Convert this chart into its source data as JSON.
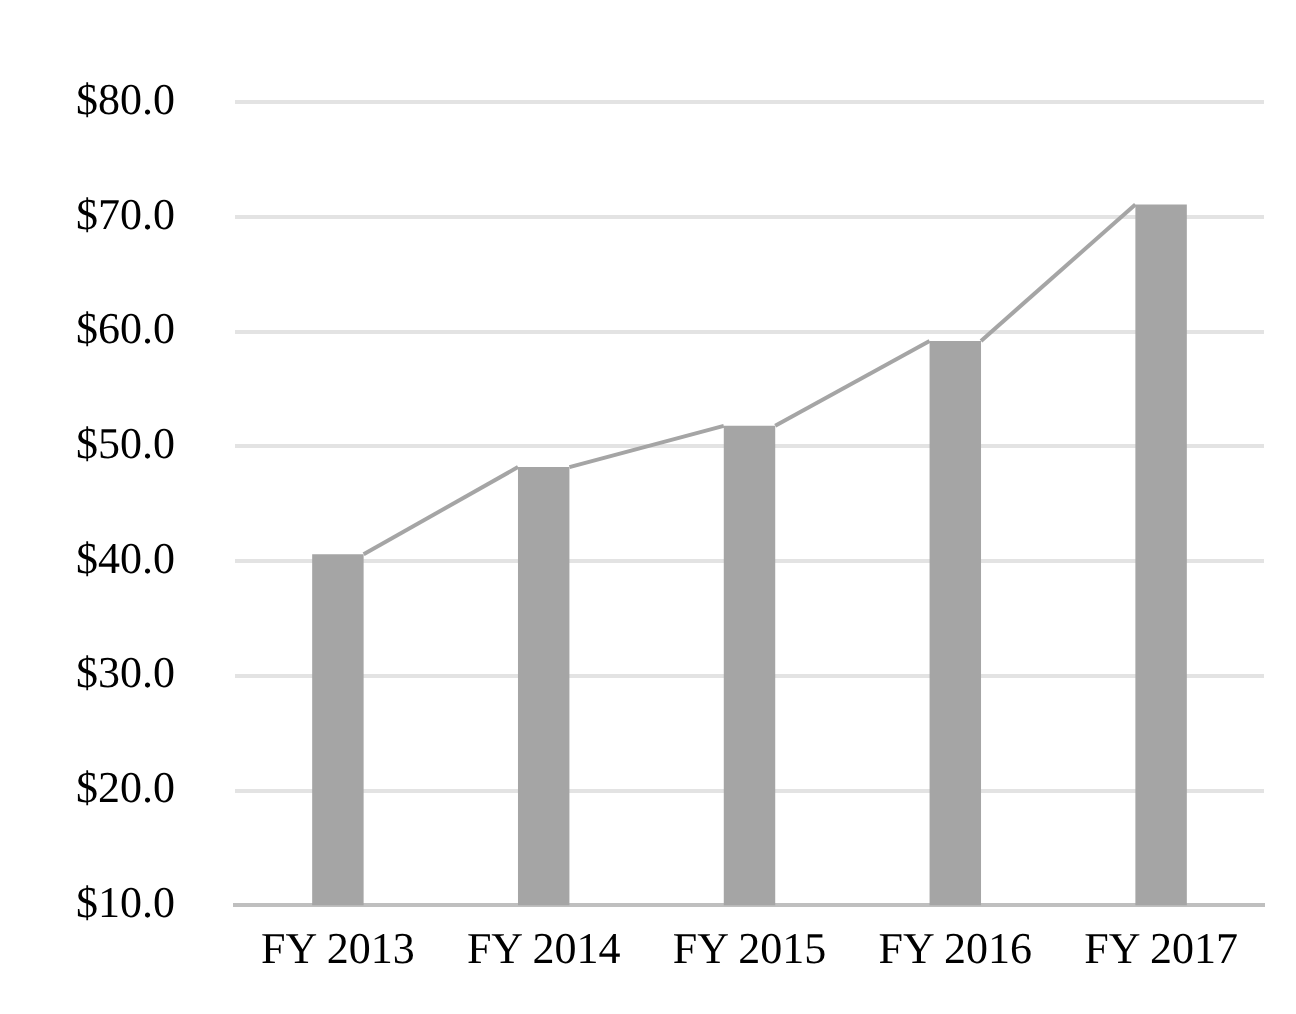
{
  "chart_data": {
    "type": "bar",
    "categories": [
      "FY 2013",
      "FY 2014",
      "FY 2015",
      "FY 2016",
      "FY 2017"
    ],
    "values": [
      40.6,
      48.2,
      51.8,
      59.2,
      71.1
    ],
    "color": "#a5a5a5",
    "ylim": [
      10,
      80
    ],
    "yticks": [
      {
        "value": 10,
        "label": "$10.0"
      },
      {
        "value": 20,
        "label": "$20.0"
      },
      {
        "value": 30,
        "label": "$30.0"
      },
      {
        "value": 40,
        "label": "$40.0"
      },
      {
        "value": 50,
        "label": "$50.0"
      },
      {
        "value": 60,
        "label": "$60.0"
      },
      {
        "value": 70,
        "label": "$70.0"
      },
      {
        "value": 80,
        "label": "$80.0"
      }
    ],
    "grid": "y",
    "legend": false
  }
}
